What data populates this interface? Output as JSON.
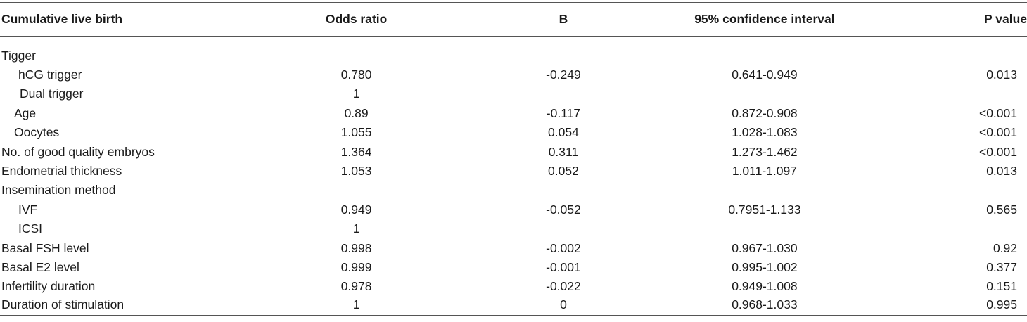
{
  "table": {
    "headers": [
      "Cumulative live birth",
      "Odds ratio",
      "B",
      "95% confidence interval",
      "P value"
    ],
    "rows": [
      {
        "label": "Tigger",
        "indent": 0,
        "or": "",
        "b": "",
        "ci": "",
        "p": ""
      },
      {
        "label": "hCG trigger",
        "indent": 2,
        "or": "0.780",
        "b": "-0.249",
        "ci": "0.641-0.949",
        "p": "0.013"
      },
      {
        "label": "Dual trigger",
        "indent": 3,
        "or": "1",
        "b": "",
        "ci": "",
        "p": ""
      },
      {
        "label": "Age",
        "indent": 1,
        "or": "0.89",
        "b": "-0.117",
        "ci": "0.872-0.908",
        "p": "<0.001"
      },
      {
        "label": "Oocytes",
        "indent": 1,
        "or": "1.055",
        "b": "0.054",
        "ci": "1.028-1.083",
        "p": "<0.001"
      },
      {
        "label": "No. of good quality embryos",
        "indent": 0,
        "or": "1.364",
        "b": "0.311",
        "ci": "1.273-1.462",
        "p": "<0.001"
      },
      {
        "label": "Endometrial thickness",
        "indent": 0,
        "or": "1.053",
        "b": "0.052",
        "ci": "1.011-1.097",
        "p": "0.013"
      },
      {
        "label": "Insemination method",
        "indent": 0,
        "or": "",
        "b": "",
        "ci": "",
        "p": ""
      },
      {
        "label": "IVF",
        "indent": 2,
        "or": "0.949",
        "b": "-0.052",
        "ci": "0.7951-1.133",
        "p": "0.565"
      },
      {
        "label": "ICSI",
        "indent": 2,
        "or": "1",
        "b": "",
        "ci": "",
        "p": ""
      },
      {
        "label": "Basal FSH level",
        "indent": 0,
        "or": "0.998",
        "b": "-0.002",
        "ci": "0.967-1.030",
        "p": "0.92"
      },
      {
        "label": "Basal E2 level",
        "indent": 0,
        "or": "0.999",
        "b": "-0.001",
        "ci": "0.995-1.002",
        "p": "0.377"
      },
      {
        "label": "Infertility duration",
        "indent": 0,
        "or": "0.978",
        "b": "-0.022",
        "ci": "0.949-1.008",
        "p": "0.151"
      },
      {
        "label": "Duration of stimulation",
        "indent": 0,
        "or": "1",
        "b": "0",
        "ci": "0.968-1.033",
        "p": "0.995"
      }
    ]
  }
}
